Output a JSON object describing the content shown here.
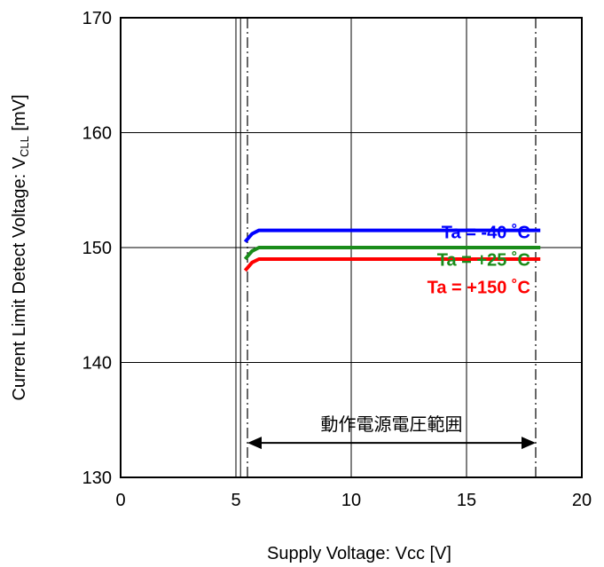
{
  "chart_data": {
    "type": "line",
    "xlabel": "Supply Voltage: Vcc [V]",
    "ylabel": {
      "prefix": "Current Limit Detect Voltage: V",
      "subscript": "CLL",
      "suffix": " [mV]"
    },
    "xlim": [
      0,
      20
    ],
    "ylim": [
      130,
      170
    ],
    "xticks": [
      "0",
      "5",
      "10",
      "15",
      "20"
    ],
    "yticks": [
      "130",
      "140",
      "150",
      "160",
      "170"
    ],
    "grid": true,
    "series": [
      {
        "name": "Ta = -40 ˚C",
        "color": "#0000ff",
        "x": [
          5.4,
          5.7,
          6.0,
          18.2
        ],
        "y": [
          150.5,
          151.2,
          151.5,
          151.5
        ]
      },
      {
        "name": "Ta = +25 ˚C",
        "color": "#1a8c1a",
        "x": [
          5.4,
          5.7,
          6.0,
          18.2
        ],
        "y": [
          149.0,
          149.7,
          150.0,
          150.0
        ]
      },
      {
        "name": "Ta = +150 ˚C",
        "color": "#ff0000",
        "x": [
          5.4,
          5.7,
          6.0,
          18.2
        ],
        "y": [
          148.0,
          148.7,
          149.0,
          149.0
        ]
      }
    ],
    "reference_lines_x": [
      5.5,
      18
    ],
    "solid_line_x": 5.2,
    "annotation": {
      "text": "動作電源電圧範囲",
      "x_start": 5.5,
      "x_end": 18,
      "y": 133
    },
    "legend_placement": "inside-right"
  }
}
